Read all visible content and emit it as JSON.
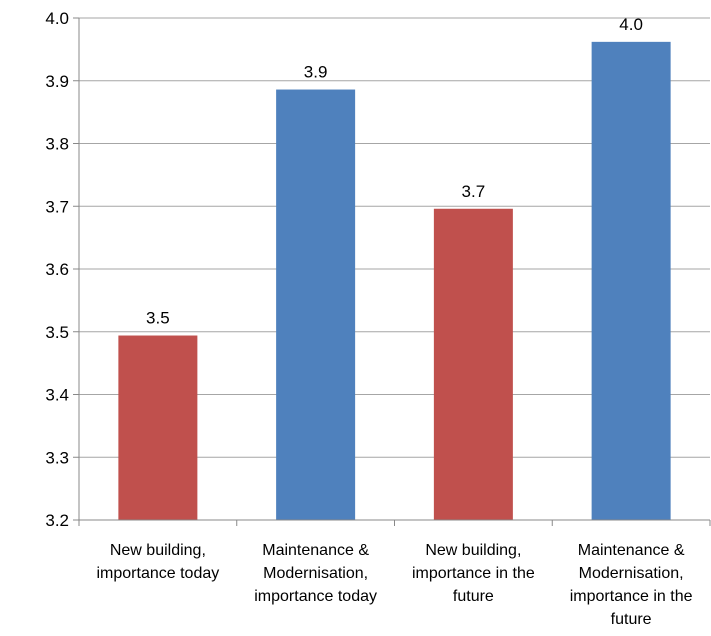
{
  "chart_data": {
    "type": "bar",
    "title": "",
    "xlabel": "",
    "ylabel": "",
    "ylim": [
      3.2,
      4.0
    ],
    "yticks": [
      "3.2",
      "3.3",
      "3.4",
      "3.5",
      "3.6",
      "3.7",
      "3.8",
      "3.9",
      "4.0"
    ],
    "grid": true,
    "legend": "none",
    "categories": [
      [
        "New building,",
        "importance today"
      ],
      [
        "Maintenance &",
        "Modernisation,",
        "importance today"
      ],
      [
        "New building,",
        "importance in the",
        "future"
      ],
      [
        "Maintenance &",
        "Modernisation,",
        "importance in the",
        "future"
      ]
    ],
    "values": [
      3.494,
      3.886,
      3.696,
      3.962
    ],
    "data_labels": [
      "3.5",
      "3.9",
      "3.7",
      "4.0"
    ],
    "colors": [
      "#C0504D",
      "#4F81BD",
      "#C0504D",
      "#4F81BD"
    ],
    "grid_color": "#A6A6A6",
    "axis_color": "#888888"
  }
}
